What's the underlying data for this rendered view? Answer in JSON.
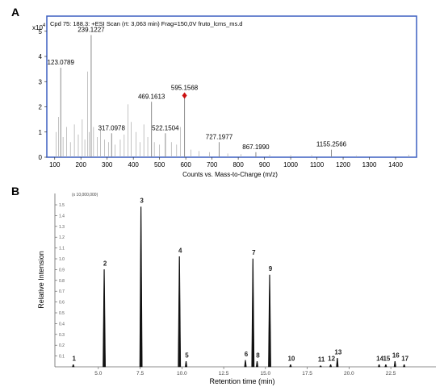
{
  "panels": [
    {
      "letter": "A"
    },
    {
      "letter": "B"
    }
  ],
  "chart_data": [
    {
      "type": "line",
      "panel": "A",
      "title": "Cpd 75: 188.3: +ESI Scan (rt: 3,063 min) Frag=150,0V fruto_lcms_ms.d",
      "xlabel": "Counts vs. Mass-to-Charge (m/z)",
      "ylabel": "",
      "y_multiplier": "x10^4",
      "y_multiplier_base": "x10",
      "y_multiplier_exp": "4",
      "xlim": [
        70,
        1480
      ],
      "ylim": [
        0,
        5.6
      ],
      "x_ticks": [
        100,
        200,
        300,
        400,
        500,
        600,
        700,
        800,
        900,
        1000,
        1100,
        1200,
        1300,
        1400
      ],
      "y_ticks": [
        0,
        1,
        2,
        3,
        4,
        5
      ],
      "frame_color": "#3b5fc0",
      "peak_color": "#8a8a8a",
      "marker_color": "#cc1111",
      "labeled_peaks": [
        {
          "x": 123.0789,
          "y": 3.55,
          "label": "123.0789"
        },
        {
          "x": 239.1227,
          "y": 4.85,
          "label": "239.1227"
        },
        {
          "x": 317.0978,
          "y": 0.95,
          "label": "317.0978"
        },
        {
          "x": 469.1613,
          "y": 2.2,
          "label": "469.1613"
        },
        {
          "x": 522.1504,
          "y": 0.95,
          "label": "522.1504"
        },
        {
          "x": 595.1568,
          "y": 2.55,
          "label": "595.1568"
        },
        {
          "x": 727.1977,
          "y": 0.6,
          "label": "727.1977"
        },
        {
          "x": 867.199,
          "y": 0.2,
          "label": "867.1990"
        },
        {
          "x": 1155.2566,
          "y": 0.3,
          "label": "1155.2566"
        }
      ],
      "precursor_marker": {
        "x": 595.1568,
        "y": 2.45
      },
      "minor_peaks": [
        {
          "x": 105,
          "y": 1.0
        },
        {
          "x": 115,
          "y": 1.6
        },
        {
          "x": 132,
          "y": 0.8
        },
        {
          "x": 145,
          "y": 1.2
        },
        {
          "x": 160,
          "y": 0.6
        },
        {
          "x": 175,
          "y": 1.3
        },
        {
          "x": 190,
          "y": 0.9
        },
        {
          "x": 205,
          "y": 1.5
        },
        {
          "x": 215,
          "y": 0.7
        },
        {
          "x": 225,
          "y": 3.4
        },
        {
          "x": 232,
          "y": 1.0
        },
        {
          "x": 248,
          "y": 1.2
        },
        {
          "x": 262,
          "y": 0.8
        },
        {
          "x": 275,
          "y": 1.1
        },
        {
          "x": 290,
          "y": 0.7
        },
        {
          "x": 305,
          "y": 0.6
        },
        {
          "x": 330,
          "y": 0.5
        },
        {
          "x": 350,
          "y": 0.7
        },
        {
          "x": 365,
          "y": 0.9
        },
        {
          "x": 380,
          "y": 2.1
        },
        {
          "x": 392,
          "y": 1.4
        },
        {
          "x": 410,
          "y": 1.0
        },
        {
          "x": 425,
          "y": 0.6
        },
        {
          "x": 440,
          "y": 1.3
        },
        {
          "x": 455,
          "y": 0.8
        },
        {
          "x": 480,
          "y": 0.6
        },
        {
          "x": 500,
          "y": 0.5
        },
        {
          "x": 545,
          "y": 0.6
        },
        {
          "x": 565,
          "y": 0.5
        },
        {
          "x": 580,
          "y": 1.2
        },
        {
          "x": 620,
          "y": 0.3
        },
        {
          "x": 650,
          "y": 0.25
        },
        {
          "x": 690,
          "y": 0.2
        },
        {
          "x": 760,
          "y": 0.15
        },
        {
          "x": 810,
          "y": 0.12
        },
        {
          "x": 920,
          "y": 0.1
        },
        {
          "x": 1000,
          "y": 0.08
        },
        {
          "x": 1080,
          "y": 0.08
        },
        {
          "x": 1250,
          "y": 0.06
        },
        {
          "x": 1450,
          "y": 0.1
        }
      ]
    },
    {
      "type": "line",
      "panel": "B",
      "xlabel": "Retention time (min)",
      "ylabel": "Relative Intension",
      "y_multiplier": "(x 10,000,000)",
      "xlim": [
        2.4,
        25.2
      ],
      "ylim": [
        0,
        1.53
      ],
      "x_ticks": [
        5.0,
        7.5,
        10.0,
        12.5,
        15.0,
        17.5,
        20.0,
        22.5
      ],
      "x_tick_labels": [
        "5.0",
        "7.5",
        "10.0",
        "12.5",
        "15.0",
        "17.5",
        "20.0",
        "22.5"
      ],
      "y_ticks": [
        0.1,
        0.2,
        0.3,
        0.4,
        0.5,
        0.6,
        0.7,
        0.8,
        0.9,
        1.0,
        1.1,
        1.2,
        1.3,
        1.4,
        1.5
      ],
      "y_tick_labels": [
        "0.1",
        "0.2",
        "0.3",
        "0.4",
        "0.5",
        "0.6",
        "0.7",
        "0.8",
        "0.9",
        "1.0",
        "1.1",
        "1.2",
        "1.3",
        "1.4",
        "1.5"
      ],
      "line_color": "#111111",
      "peaks": [
        {
          "label": "1",
          "x": 3.5,
          "y": 0.02
        },
        {
          "label": "2",
          "x": 5.35,
          "y": 0.9
        },
        {
          "label": "3",
          "x": 7.55,
          "y": 1.48
        },
        {
          "label": "4",
          "x": 9.85,
          "y": 1.02
        },
        {
          "label": "5",
          "x": 10.25,
          "y": 0.05
        },
        {
          "label": "6",
          "x": 13.8,
          "y": 0.06
        },
        {
          "label": "7",
          "x": 14.25,
          "y": 1.0
        },
        {
          "label": "8",
          "x": 14.5,
          "y": 0.05
        },
        {
          "label": "9",
          "x": 15.25,
          "y": 0.85
        },
        {
          "label": "10",
          "x": 16.5,
          "y": 0.02
        },
        {
          "label": "11",
          "x": 18.3,
          "y": 0.01
        },
        {
          "label": "12",
          "x": 18.9,
          "y": 0.02
        },
        {
          "label": "13",
          "x": 19.3,
          "y": 0.08
        },
        {
          "label": "14",
          "x": 21.8,
          "y": 0.02
        },
        {
          "label": "15",
          "x": 22.2,
          "y": 0.02
        },
        {
          "label": "16",
          "x": 22.75,
          "y": 0.05
        },
        {
          "label": "17",
          "x": 23.3,
          "y": 0.02
        }
      ]
    }
  ]
}
